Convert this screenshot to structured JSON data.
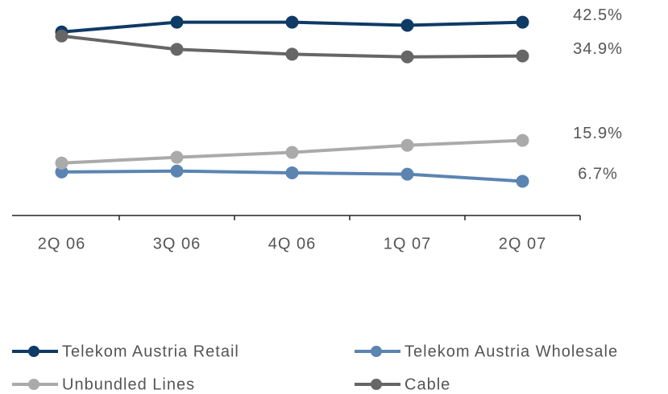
{
  "chart_data": {
    "type": "line",
    "categories": [
      "2Q 06",
      "3Q 06",
      "4Q 06",
      "1Q 07",
      "2Q 07"
    ],
    "series": [
      {
        "name": "Telekom Austria Retail",
        "color": "#0e3a66",
        "values": [
          40.3,
          42.5,
          42.5,
          41.8,
          42.5
        ],
        "value_labels": [
          null,
          null,
          null,
          null,
          "42.5%"
        ]
      },
      {
        "name": "Telekom Austria Wholesale",
        "color": "#5b84b1",
        "values": [
          8.8,
          9.0,
          8.6,
          8.3,
          6.7
        ],
        "value_labels": [
          null,
          null,
          null,
          null,
          "6.7%"
        ]
      },
      {
        "name": "Unbundled Lines",
        "color": "#aaaaaa",
        "values": [
          10.8,
          12.1,
          13.2,
          14.8,
          15.9
        ],
        "value_labels": [
          null,
          null,
          null,
          null,
          "15.9%"
        ]
      },
      {
        "name": "Cable",
        "color": "#666666",
        "values": [
          39.4,
          36.4,
          35.3,
          34.7,
          34.9
        ],
        "value_labels": [
          null,
          null,
          null,
          null,
          "34.9%"
        ]
      }
    ],
    "ylim": [
      -1,
      47.5
    ],
    "legend": "bottom"
  }
}
